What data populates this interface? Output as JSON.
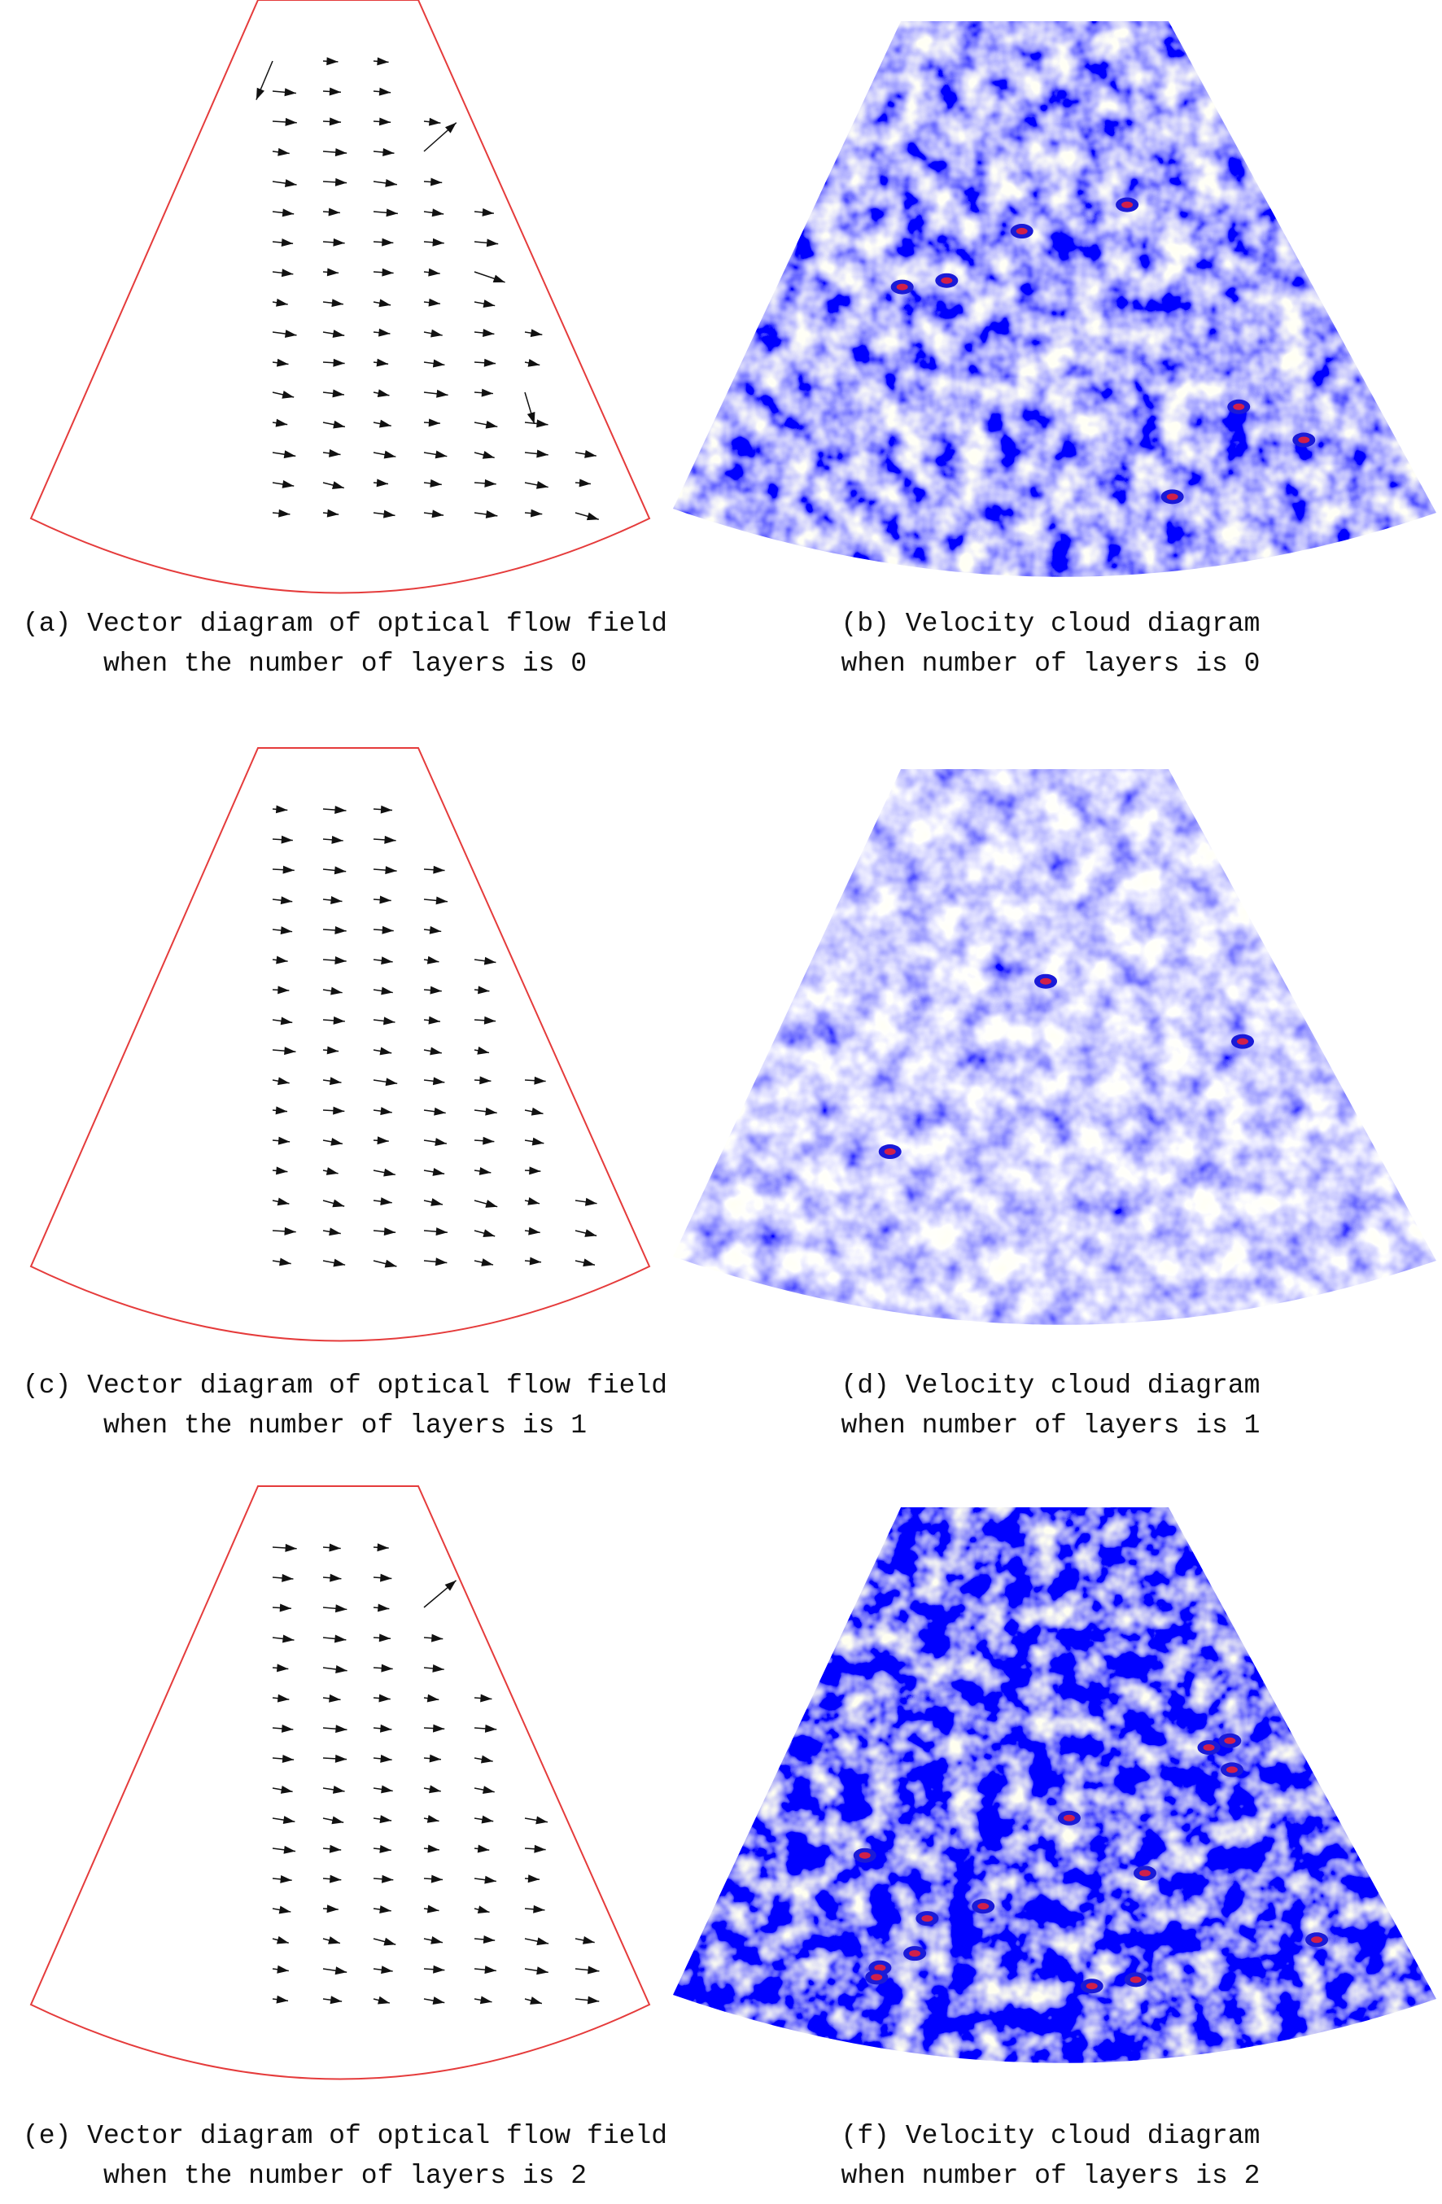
{
  "panels": [
    {
      "caption": [
        "(a) Vector diagram of optical flow field",
        "when the number of layers is 0"
      ]
    },
    {
      "caption": [
        "(b) Velocity cloud diagram",
        "when number of layers is 0"
      ]
    },
    {
      "caption": [
        "(c) Vector diagram of optical flow field",
        "when the number of layers is 1"
      ]
    },
    {
      "caption": [
        "(d) Velocity cloud diagram",
        "when number of layers is 1"
      ]
    },
    {
      "caption": [
        "(e) Vector diagram of optical flow field",
        "when the number of layers is 2"
      ]
    },
    {
      "caption": [
        "(f) Velocity cloud diagram",
        "when number of layers is 2"
      ]
    }
  ]
}
